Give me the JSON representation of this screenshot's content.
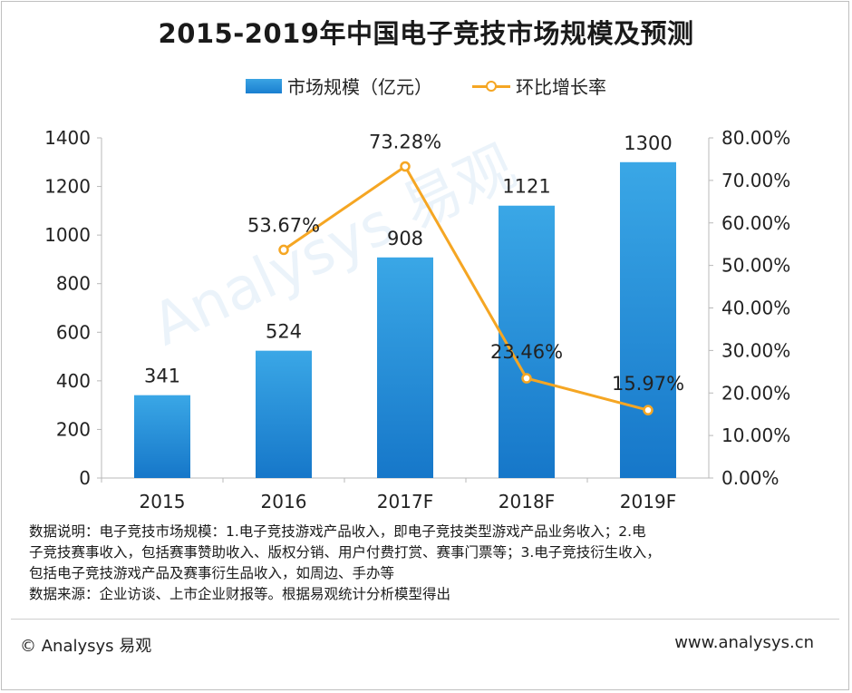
{
  "chart_data": {
    "type": "bar",
    "title": "2015-2019年中国电子竞技市场规模及预测",
    "categories": [
      "2015",
      "2016",
      "2017F",
      "2018F",
      "2019F"
    ],
    "series": [
      {
        "name": "市场规模（亿元）",
        "type": "bar",
        "axis": "left",
        "values": [
          341,
          524,
          908,
          1121,
          1300
        ],
        "labels": [
          "341",
          "524",
          "908",
          "1121",
          "1300"
        ],
        "color": "#1f8ad6"
      },
      {
        "name": "环比增长率",
        "type": "line",
        "axis": "right",
        "values": [
          null,
          53.67,
          73.28,
          23.46,
          15.97
        ],
        "labels": [
          "",
          "53.67%",
          "73.28%",
          "23.46%",
          "15.97%"
        ],
        "color": "#f5a623"
      }
    ],
    "left_axis": {
      "ylim": [
        0,
        1400
      ],
      "ticks": [
        "0",
        "200",
        "400",
        "600",
        "800",
        "1000",
        "1200",
        "1400"
      ]
    },
    "right_axis": {
      "ylim": [
        0,
        80
      ],
      "ticks": [
        "0.00%",
        "10.00%",
        "20.00%",
        "30.00%",
        "40.00%",
        "50.00%",
        "60.00%",
        "70.00%",
        "80.00%"
      ]
    },
    "grid": false,
    "legend": "top-center"
  },
  "legend": {
    "bar_label": "市场规模（亿元）",
    "line_label": "环比增长率"
  },
  "notes": {
    "line1": "数据说明：电子竞技市场规模：1.电子竞技游戏产品收入，即电子竞技类型游戏产品业务收入；2.电",
    "line2": "子竞技赛事收入，包括赛事赞助收入、版权分销、用户付费打赏、赛事门票等；3.电子竞技衍生收入，",
    "line3": "包括电子竞技游戏产品及赛事衍生品收入，如周边、手办等",
    "line4": "数据来源：企业访谈、上市企业财报等。根据易观统计分析模型得出"
  },
  "footer": {
    "copyright": "© Analysys 易观",
    "website": "www.analysys.cn"
  },
  "watermark": "Analysys 易观"
}
